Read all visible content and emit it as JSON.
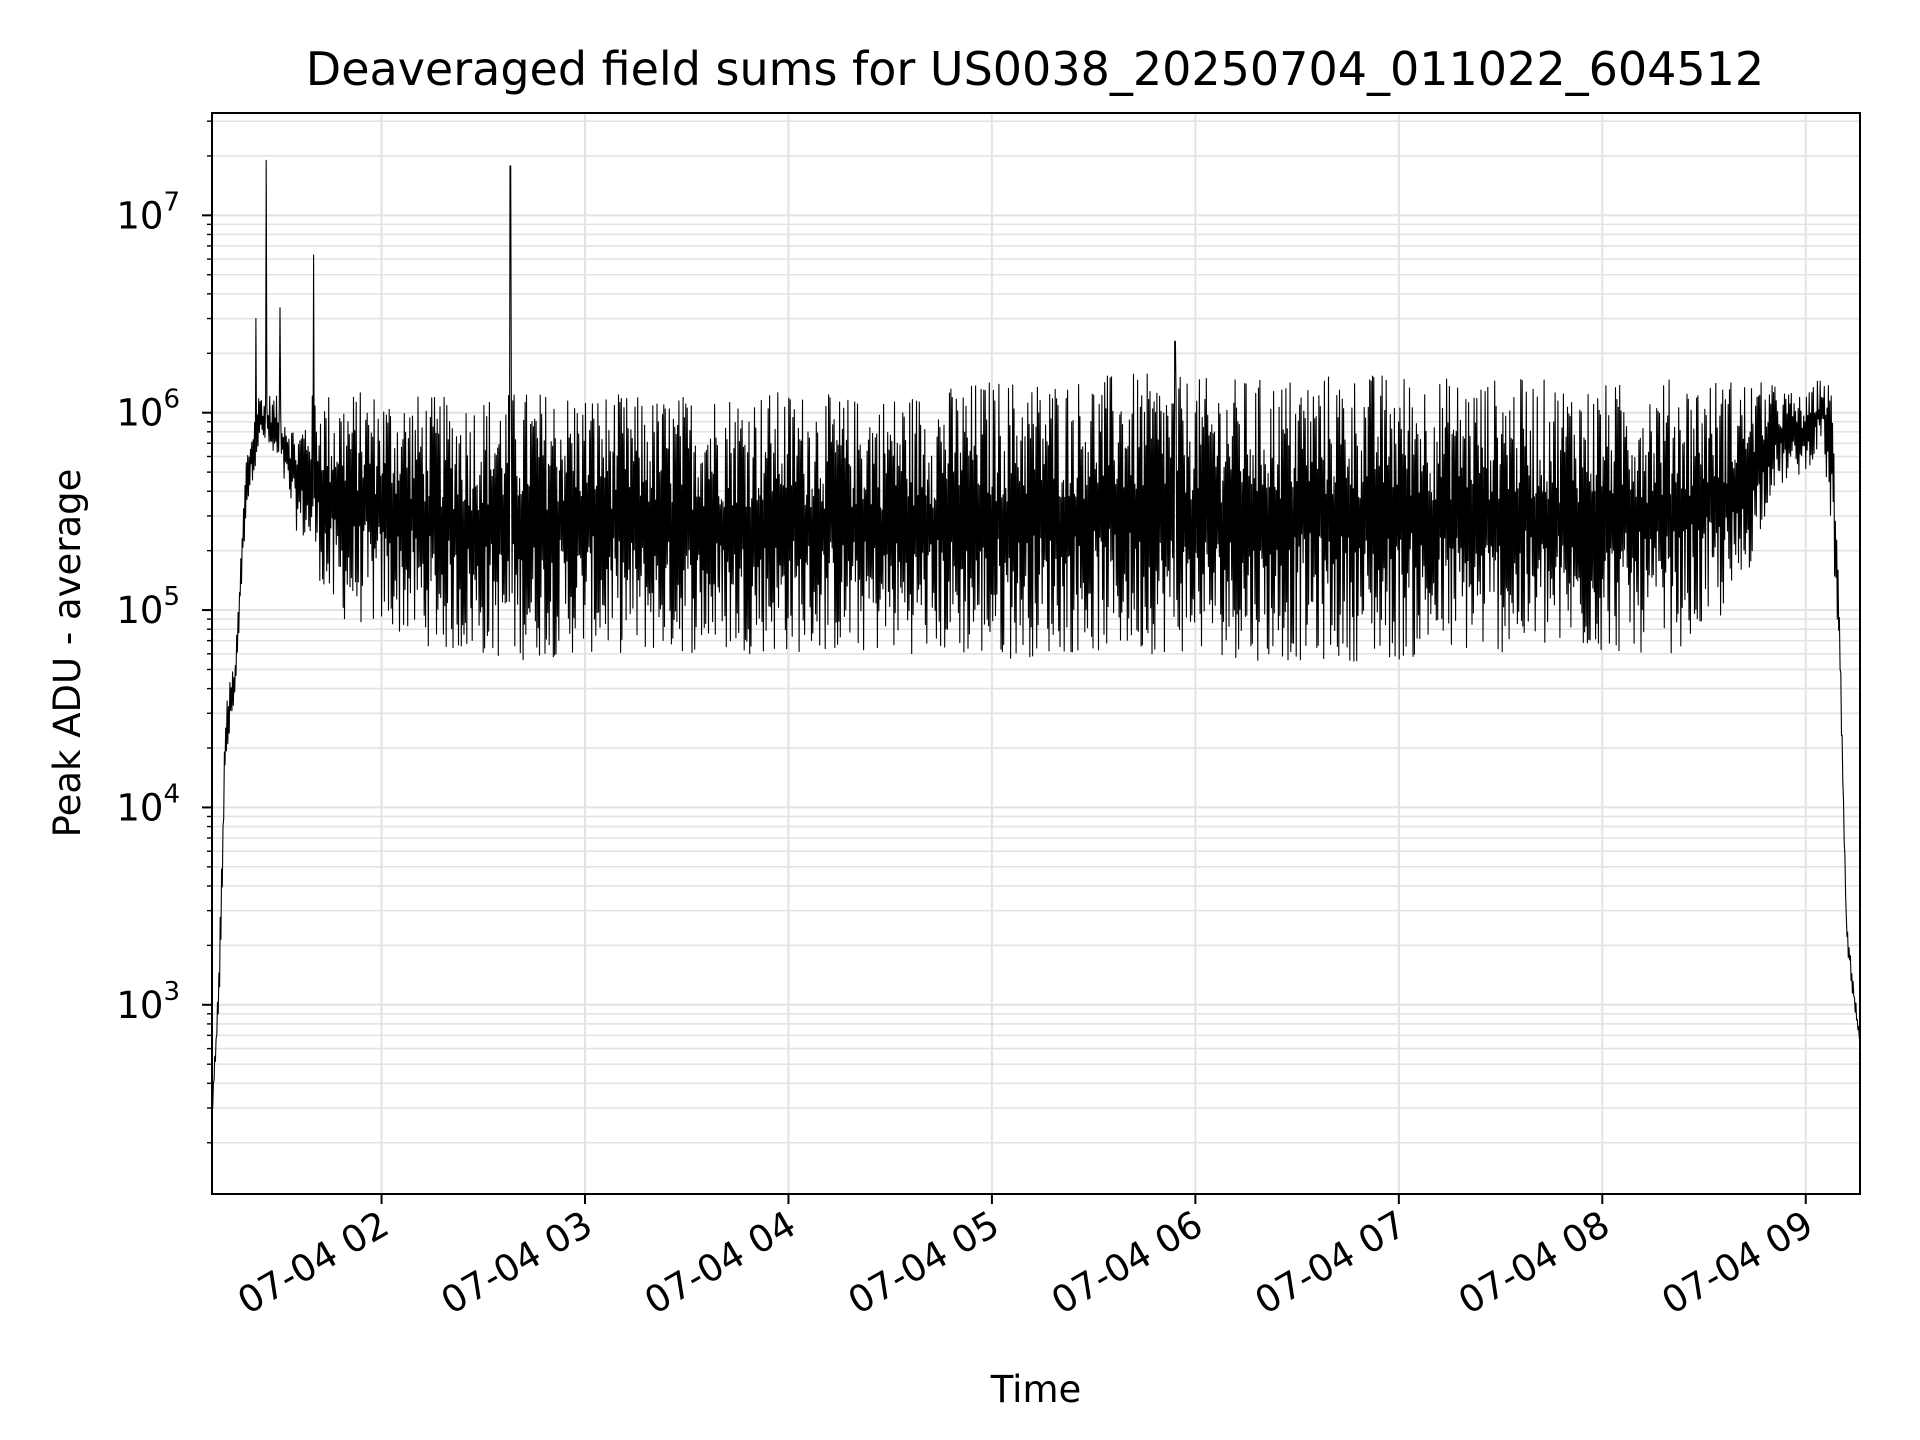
{
  "chart_data": {
    "type": "line",
    "title": "Deaveraged field sums for US0038_20250704_011022_604512",
    "xlabel": "Time",
    "ylabel": "Peak ADU - average",
    "y_scale": "log",
    "ylim": [
      110,
      33000000
    ],
    "xlim": [
      "07-04 01:10",
      "07-04 09:16"
    ],
    "grid": true,
    "x_ticks": [
      "07-04 02",
      "07-04 03",
      "07-04 04",
      "07-04 05",
      "07-04 06",
      "07-04 07",
      "07-04 08",
      "07-04 09"
    ],
    "x_tick_times": [
      "07-04 02:00",
      "07-04 03:00",
      "07-04 04:00",
      "07-04 05:00",
      "07-04 06:00",
      "07-04 07:00",
      "07-04 08:00",
      "07-04 09:00"
    ],
    "y_ticks": [
      {
        "base": "10",
        "exp": "3",
        "value": 1000
      },
      {
        "base": "10",
        "exp": "4",
        "value": 10000
      },
      {
        "base": "10",
        "exp": "5",
        "value": 100000
      },
      {
        "base": "10",
        "exp": "6",
        "value": 1000000
      },
      {
        "base": "10",
        "exp": "7",
        "value": 10000000
      }
    ],
    "series": [
      {
        "color": "#000000",
        "envelope": [
          {
            "x": "07-04 01:10",
            "low": 260,
            "high": 300
          },
          {
            "x": "07-04 01:12",
            "low": 800,
            "high": 1500
          },
          {
            "x": "07-04 01:14",
            "low": 15000,
            "high": 35000
          },
          {
            "x": "07-04 01:17",
            "low": 40000,
            "high": 60000
          },
          {
            "x": "07-04 01:20",
            "low": 300000,
            "high": 600000
          },
          {
            "x": "07-04 01:24",
            "low": 700000,
            "high": 1300000
          },
          {
            "x": "07-04 01:30",
            "low": 500000,
            "high": 1200000
          },
          {
            "x": "07-04 01:35",
            "low": 250000,
            "high": 800000
          },
          {
            "x": "07-04 01:40",
            "low": 180000,
            "high": 1300000
          },
          {
            "x": "07-04 01:45",
            "low": 90000,
            "high": 1300000
          },
          {
            "x": "07-04 02:00",
            "low": 80000,
            "high": 1300000
          },
          {
            "x": "07-04 02:20",
            "low": 60000,
            "high": 1200000
          },
          {
            "x": "07-04 02:40",
            "low": 55000,
            "high": 1300000
          },
          {
            "x": "07-04 03:00",
            "low": 60000,
            "high": 1300000
          },
          {
            "x": "07-04 03:20",
            "low": 60000,
            "high": 1200000
          },
          {
            "x": "07-04 03:40",
            "low": 60000,
            "high": 1300000
          },
          {
            "x": "07-04 04:00",
            "low": 60000,
            "high": 1300000
          },
          {
            "x": "07-04 04:20",
            "low": 60000,
            "high": 1200000
          },
          {
            "x": "07-04 04:40",
            "low": 60000,
            "high": 1300000
          },
          {
            "x": "07-04 05:00",
            "low": 55000,
            "high": 1500000
          },
          {
            "x": "07-04 05:20",
            "low": 60000,
            "high": 1500000
          },
          {
            "x": "07-04 05:40",
            "low": 60000,
            "high": 1600000
          },
          {
            "x": "07-04 06:00",
            "low": 60000,
            "high": 1500000
          },
          {
            "x": "07-04 06:20",
            "low": 55000,
            "high": 1500000
          },
          {
            "x": "07-04 06:40",
            "low": 55000,
            "high": 1600000
          },
          {
            "x": "07-04 07:00",
            "low": 55000,
            "high": 1600000
          },
          {
            "x": "07-04 07:20",
            "low": 60000,
            "high": 1500000
          },
          {
            "x": "07-04 07:40",
            "low": 60000,
            "high": 1500000
          },
          {
            "x": "07-04 08:00",
            "low": 60000,
            "high": 1400000
          },
          {
            "x": "07-04 08:20",
            "low": 60000,
            "high": 1500000
          },
          {
            "x": "07-04 08:40",
            "low": 100000,
            "high": 1500000
          },
          {
            "x": "07-04 08:50",
            "low": 400000,
            "high": 1400000
          },
          {
            "x": "07-04 09:00",
            "low": 500000,
            "high": 1200000
          },
          {
            "x": "07-04 09:05",
            "low": 700000,
            "high": 1600000
          },
          {
            "x": "07-04 09:08",
            "low": 200000,
            "high": 1300000
          },
          {
            "x": "07-04 09:10",
            "low": 50000,
            "high": 90000
          },
          {
            "x": "07-04 09:12",
            "low": 2000,
            "high": 3000
          },
          {
            "x": "07-04 09:14",
            "low": 1000,
            "high": 1400
          },
          {
            "x": "07-04 09:16",
            "low": 600,
            "high": 700
          }
        ],
        "spikes": [
          {
            "x": "07-04 01:26",
            "y": 19000000
          },
          {
            "x": "07-04 01:23",
            "y": 3000000
          },
          {
            "x": "07-04 01:30",
            "y": 3400000
          },
          {
            "x": "07-04 01:40",
            "y": 6300000
          },
          {
            "x": "07-04 02:38",
            "y": 17800000
          },
          {
            "x": "07-04 05:54",
            "y": 2300000
          }
        ]
      }
    ]
  }
}
